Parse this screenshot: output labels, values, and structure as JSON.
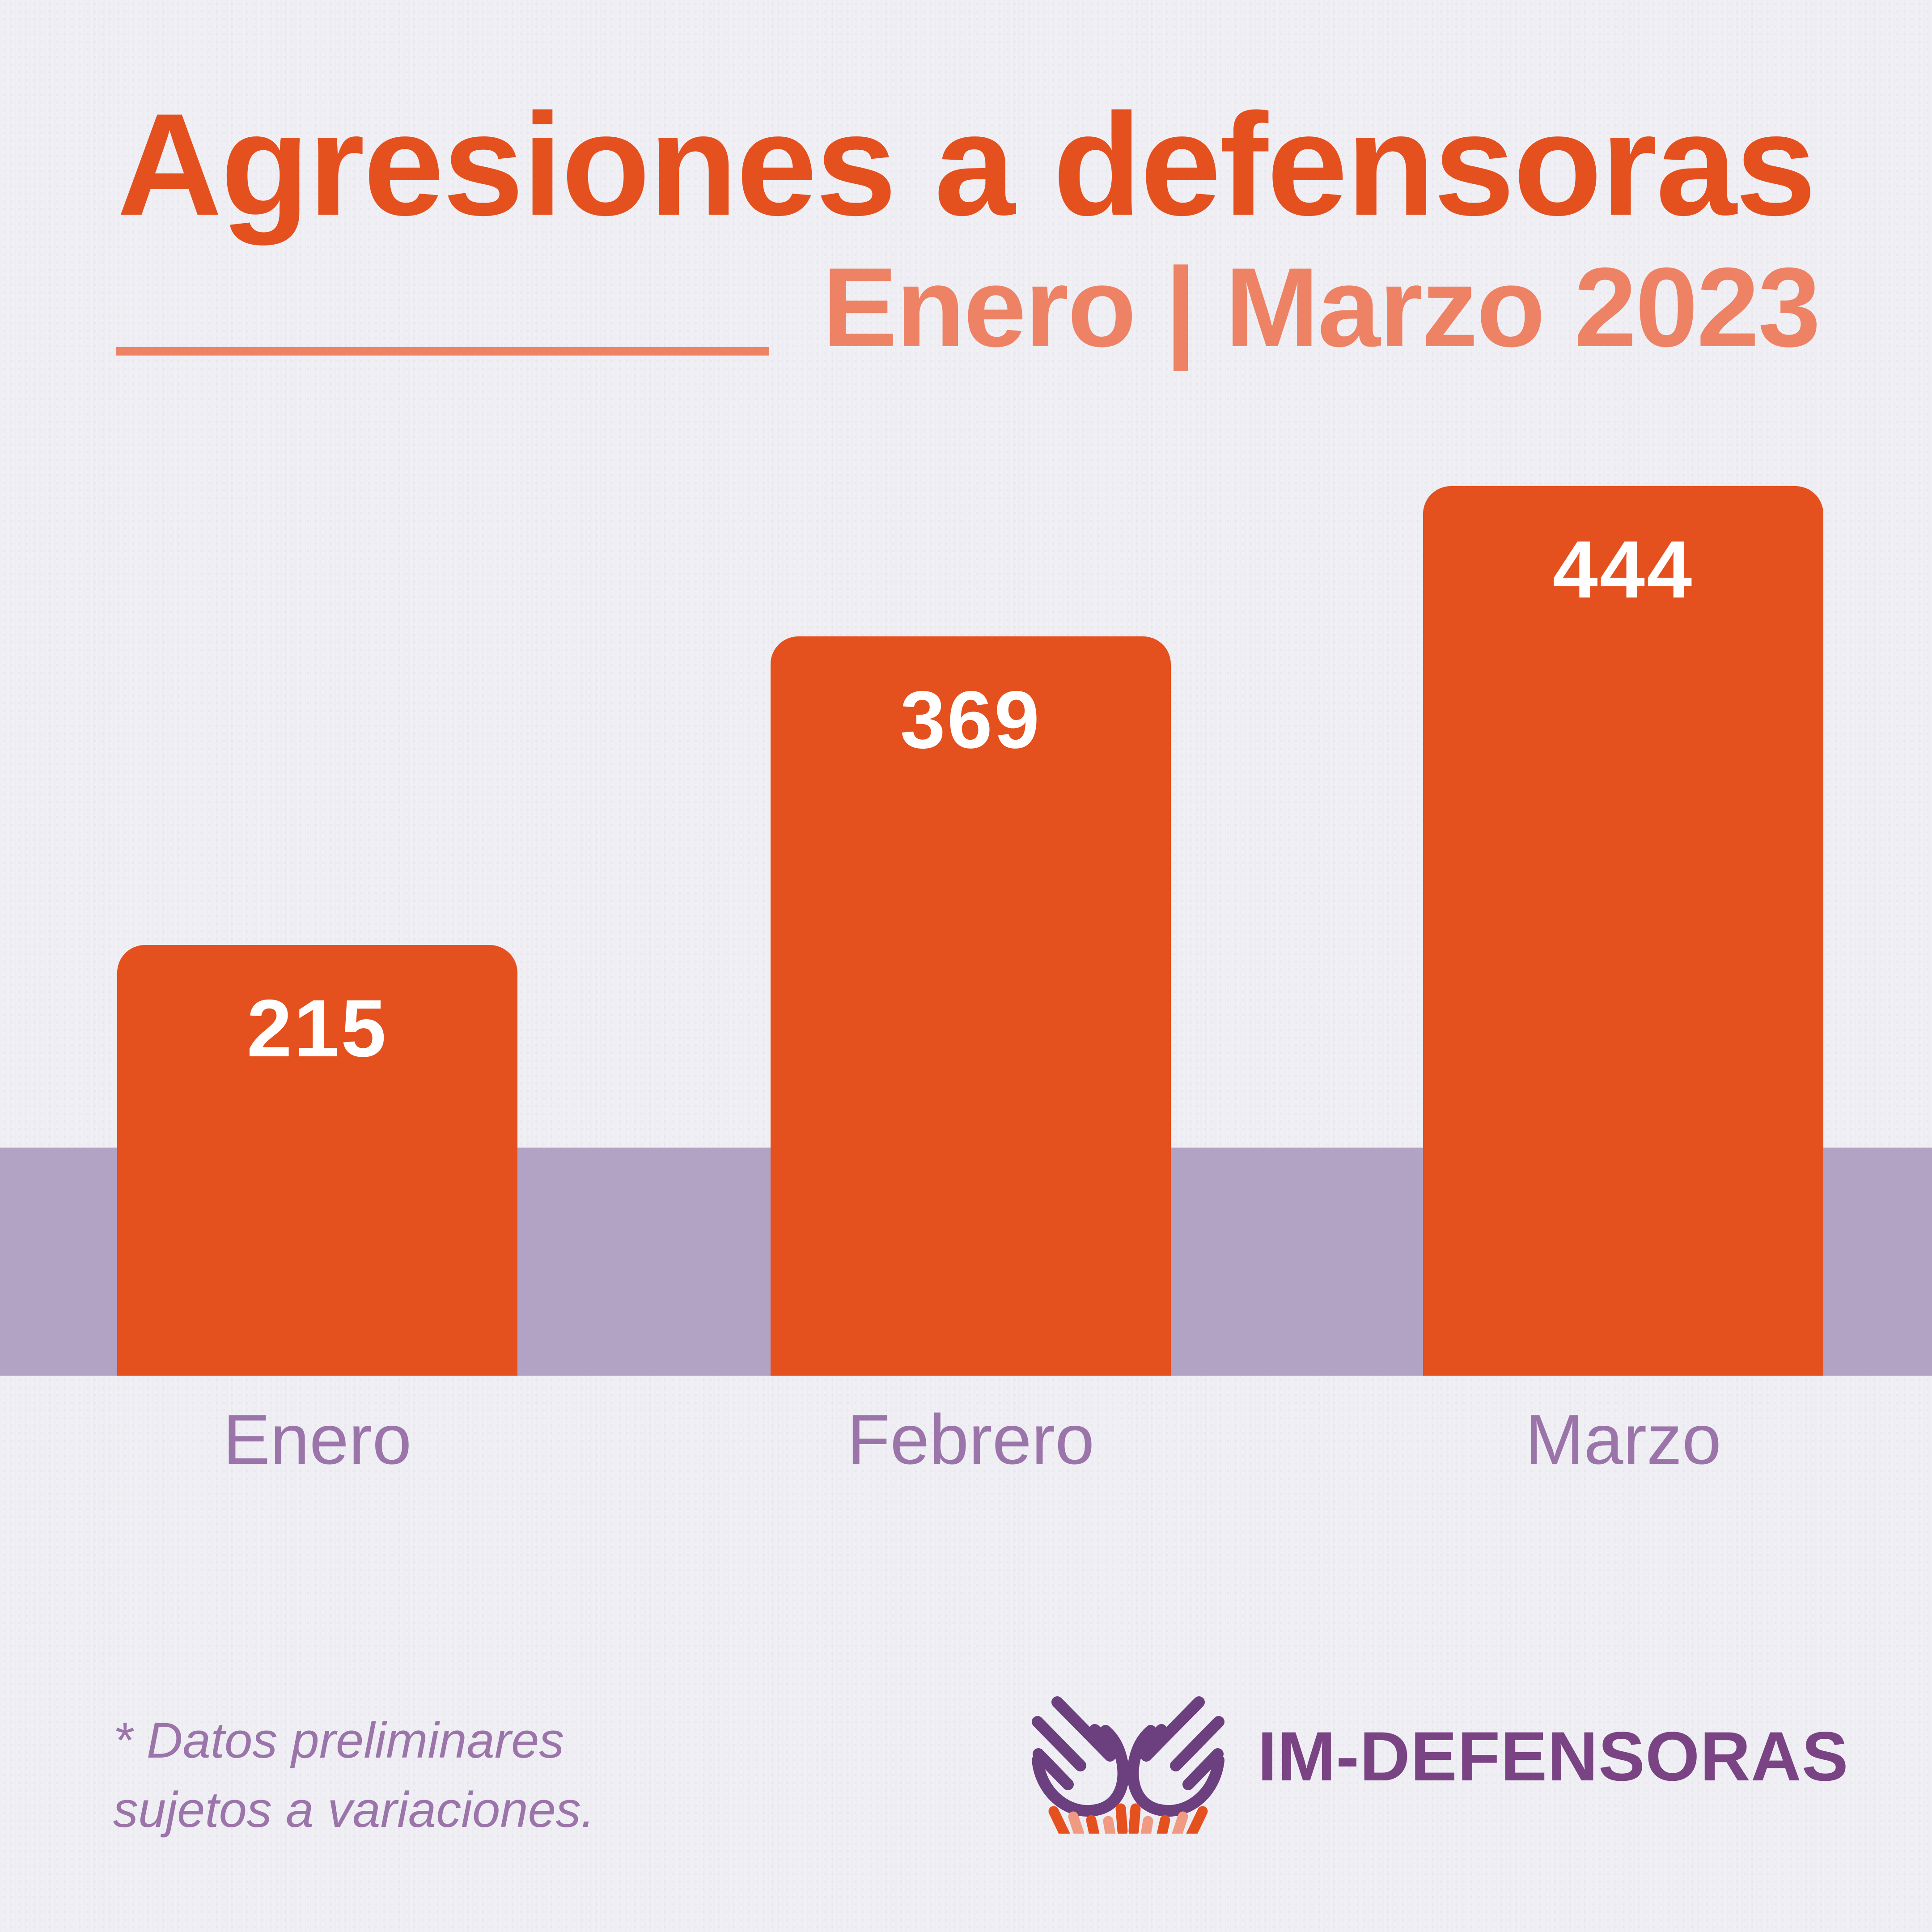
{
  "header": {
    "title": "Agresiones a defensoras",
    "subtitle": "Enero | Marzo 2023"
  },
  "chart_data": {
    "type": "bar",
    "title": "Agresiones a defensoras",
    "subtitle": "Enero | Marzo 2023",
    "categories": [
      "Enero",
      "Febrero",
      "Marzo"
    ],
    "values": [
      215,
      369,
      444
    ],
    "xlabel": "",
    "ylabel": "",
    "ylim": [
      0,
      460
    ],
    "grid": false,
    "legend": false,
    "value_labels_shown": true,
    "bar_color": "#E5511E",
    "value_label_color": "#FFFFFF",
    "category_label_color": "#9B74A9",
    "baseline_band_color": "#B2A3C5"
  },
  "footnote": {
    "line1": "* Datos preliminares",
    "line2": "sujetos a variaciones."
  },
  "logo": {
    "wordmark": "IM-DEFENSORAS",
    "icon": "open-hands-icon"
  },
  "colors": {
    "background": "#EFEFF4",
    "brand_orange": "#E5511E",
    "accent_salmon": "#EE8265",
    "accent_salmon_light": "#F09A82",
    "band_purple": "#B2A3C5",
    "label_purple": "#9B74A9",
    "logo_purple": "#6C3F7E",
    "wordmark_purple": "#7A4484"
  }
}
